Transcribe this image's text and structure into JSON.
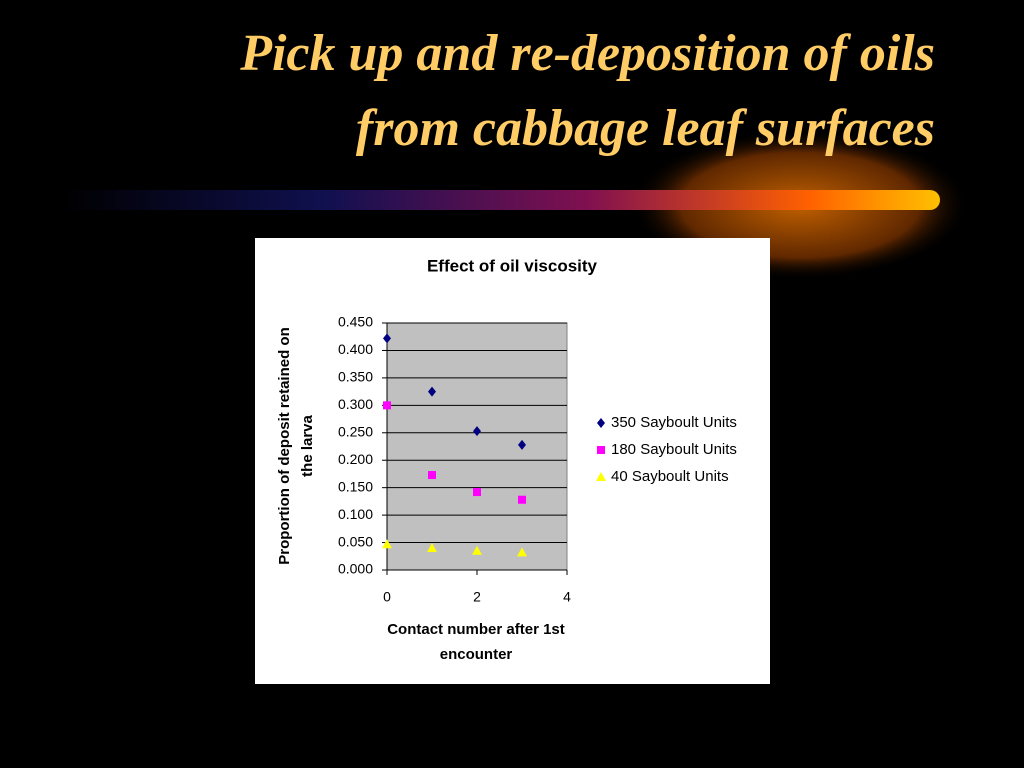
{
  "slide": {
    "title": [
      "Pick up and re-deposition of oils",
      "from cabbage leaf surfaces"
    ]
  },
  "chart_data": {
    "type": "scatter",
    "title": "Effect of oil viscosity",
    "x_label": [
      "Contact number after 1st",
      "encounter"
    ],
    "y_label": [
      "Proportion of deposit retained on",
      "the larva"
    ],
    "x": [
      0,
      1,
      2,
      3
    ],
    "series": [
      {
        "name": "350 Sayboult Units",
        "color": "#000080",
        "marker": "diamond",
        "values": [
          0.422,
          0.325,
          0.253,
          0.228
        ]
      },
      {
        "name": "180 Sayboult Units",
        "color": "#ff00ff",
        "marker": "square",
        "values": [
          0.3,
          0.173,
          0.142,
          0.128
        ]
      },
      {
        "name": "40 Sayboult Units",
        "color": "#ffff00",
        "marker": "triangle",
        "values": [
          0.047,
          0.04,
          0.035,
          0.032
        ]
      }
    ],
    "xlim": [
      0,
      4
    ],
    "xticks": [
      0,
      2,
      4
    ],
    "ylim": [
      0,
      0.45
    ],
    "yticks": [
      {
        "value": 0,
        "label": "0.000"
      },
      {
        "value": 0.05,
        "label": "0.050"
      },
      {
        "value": 0.1,
        "label": "0.100"
      },
      {
        "value": 0.15,
        "label": "0.150"
      },
      {
        "value": 0.2,
        "label": "0.200"
      },
      {
        "value": 0.25,
        "label": "0.250"
      },
      {
        "value": 0.3,
        "label": "0.300"
      },
      {
        "value": 0.35,
        "label": "0.350"
      },
      {
        "value": 0.4,
        "label": "0.400"
      },
      {
        "value": 0.45,
        "label": "0.450"
      }
    ],
    "grid": true,
    "plot_background": "#c0c0c0",
    "legend": "right"
  }
}
